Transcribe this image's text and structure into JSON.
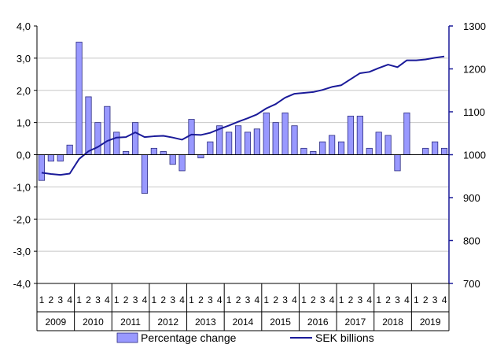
{
  "chart_data": {
    "type": "bar+line",
    "title": "",
    "xlabel": "",
    "ylabel_left": "",
    "ylabel_right": "",
    "ylim_left": [
      -4,
      4
    ],
    "ylim_right": [
      700,
      1300
    ],
    "yticks_left": [
      "4,0",
      "3,0",
      "2,0",
      "1,0",
      "0,0",
      "-1,0",
      "-2,0",
      "-3,0",
      "-4,0"
    ],
    "yticks_right": [
      "1300",
      "1200",
      "1100",
      "1000",
      "900",
      "800",
      "700"
    ],
    "years": [
      "2009",
      "2010",
      "2011",
      "2012",
      "2013",
      "2014",
      "2015",
      "2016",
      "2017",
      "2018",
      "2019"
    ],
    "quarters": [
      "1",
      "2",
      "3",
      "4"
    ],
    "grid": true,
    "legend_position": "bottom",
    "series": [
      {
        "name": "Percentage change",
        "kind": "bar",
        "axis": "left",
        "color": "#9999ff",
        "values": [
          -0.8,
          -0.2,
          -0.2,
          0.3,
          3.5,
          1.8,
          1.0,
          1.5,
          0.7,
          0.1,
          1.0,
          -1.2,
          0.2,
          0.1,
          -0.3,
          -0.5,
          1.1,
          -0.1,
          0.4,
          0.9,
          0.7,
          0.9,
          0.7,
          0.8,
          1.3,
          1.0,
          1.3,
          0.9,
          0.2,
          0.1,
          0.4,
          0.6,
          0.4,
          1.2,
          1.2,
          0.2,
          0.7,
          0.6,
          -0.5,
          1.3,
          0.0,
          0.2,
          0.4,
          0.2
        ]
      },
      {
        "name": "SEK billions",
        "kind": "line",
        "axis": "right",
        "color": "#1a1a99",
        "values": [
          958,
          955,
          953,
          956,
          990,
          1008,
          1018,
          1032,
          1040,
          1041,
          1052,
          1041,
          1043,
          1044,
          1040,
          1035,
          1047,
          1046,
          1051,
          1060,
          1068,
          1077,
          1085,
          1094,
          1108,
          1118,
          1133,
          1142,
          1144,
          1146,
          1151,
          1158,
          1162,
          1176,
          1190,
          1193,
          1202,
          1210,
          1204,
          1220,
          1220,
          1222,
          1226,
          1229
        ]
      }
    ]
  },
  "colors": {
    "bar_fill": "#9999ff",
    "bar_stroke": "#2b2b80",
    "line": "#1a1a99",
    "axis_right": "#1a1a99",
    "grid": "#c8c8c8"
  }
}
